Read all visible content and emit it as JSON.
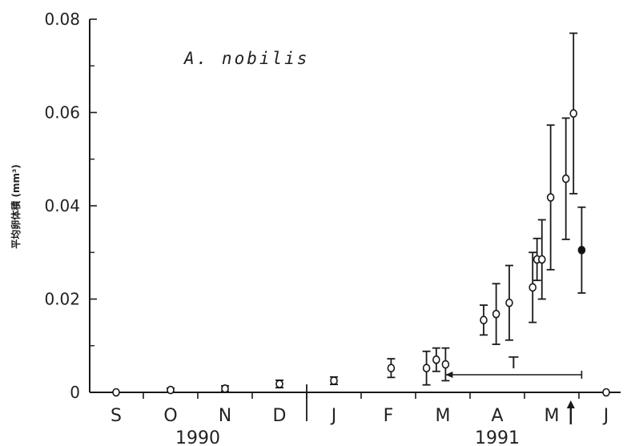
{
  "chart_data": {
    "type": "scatter",
    "title": "",
    "annotation_species": "A. nobilis",
    "ylabel": "平均卵体積 (mm³)",
    "xlabel": "",
    "ylim": [
      0,
      0.08
    ],
    "yticks": [
      "0",
      "0.02",
      "0.04",
      "0.06",
      "0.08"
    ],
    "ytick_values": [
      0,
      0.02,
      0.04,
      0.06,
      0.08
    ],
    "months": [
      {
        "label": "S",
        "index": 0
      },
      {
        "label": "O",
        "index": 1
      },
      {
        "label": "N",
        "index": 2
      },
      {
        "label": "D",
        "index": 3
      },
      {
        "label": "J",
        "index": 4
      },
      {
        "label": "F",
        "index": 5
      },
      {
        "label": "M",
        "index": 6
      },
      {
        "label": "A",
        "index": 7
      },
      {
        "label": "M",
        "index": 8
      },
      {
        "label": "J",
        "index": 9
      }
    ],
    "years": [
      {
        "label": "1990",
        "center_month": 1.5
      },
      {
        "label": "1991",
        "center_month": 7.0
      }
    ],
    "year_divider_month": 3.5,
    "arrow_month": 8.35,
    "range_annotation": {
      "label": "T",
      "start_month": 6.05,
      "end_month": 8.55
    },
    "points": [
      {
        "m": 0.0,
        "y": 0.0,
        "err": 0.0,
        "filled": false
      },
      {
        "m": 1.0,
        "y": 0.0005,
        "err": 0.0004,
        "filled": false
      },
      {
        "m": 2.0,
        "y": 0.0008,
        "err": 0.0006,
        "filled": false
      },
      {
        "m": 3.0,
        "y": 0.0018,
        "err": 0.0008,
        "filled": false
      },
      {
        "m": 4.0,
        "y": 0.0025,
        "err": 0.0008,
        "filled": false
      },
      {
        "m": 5.05,
        "y": 0.0052,
        "err": 0.002,
        "filled": false
      },
      {
        "m": 5.7,
        "y": 0.0052,
        "err": 0.0036,
        "filled": false
      },
      {
        "m": 5.88,
        "y": 0.007,
        "err": 0.0025,
        "filled": false
      },
      {
        "m": 6.05,
        "y": 0.006,
        "err": 0.0035,
        "filled": false
      },
      {
        "m": 6.75,
        "y": 0.0155,
        "err": 0.0032,
        "filled": false
      },
      {
        "m": 6.98,
        "y": 0.0168,
        "err": 0.0065,
        "filled": false
      },
      {
        "m": 7.22,
        "y": 0.0192,
        "err": 0.008,
        "filled": false
      },
      {
        "m": 7.65,
        "y": 0.0225,
        "err": 0.0075,
        "filled": false
      },
      {
        "m": 7.73,
        "y": 0.0285,
        "err": 0.0045,
        "filled": false
      },
      {
        "m": 7.82,
        "y": 0.0285,
        "err": 0.0085,
        "filled": false
      },
      {
        "m": 7.98,
        "y": 0.0418,
        "err": 0.0155,
        "filled": false
      },
      {
        "m": 8.26,
        "y": 0.0458,
        "err": 0.013,
        "filled": false
      },
      {
        "m": 8.4,
        "y": 0.0598,
        "err": 0.0172,
        "filled": false
      },
      {
        "m": 8.55,
        "y": 0.0305,
        "err": 0.0092,
        "filled": true
      },
      {
        "m": 9.0,
        "y": 0.0,
        "err": 0.0,
        "filled": false
      }
    ],
    "grid": false,
    "legend": "none"
  }
}
